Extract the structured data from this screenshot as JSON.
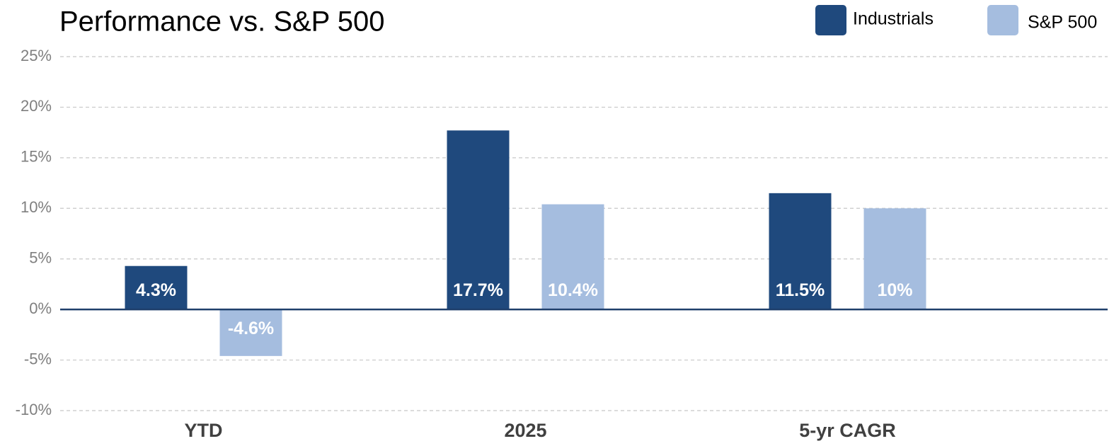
{
  "chart_data": {
    "type": "bar",
    "title": "Performance vs. S&P 500",
    "categories": [
      "YTD",
      "2025",
      "5-yr CAGR"
    ],
    "series": [
      {
        "name": "Industrials",
        "color": "#1f497d",
        "values": [
          4.3,
          17.7,
          11.5
        ],
        "value_labels": [
          "4.3%",
          "17.7%",
          "11.5%"
        ]
      },
      {
        "name": "S&P 500",
        "color": "#a5bddf",
        "values": [
          -4.6,
          10.4,
          10
        ],
        "value_labels": [
          "-4.6%",
          "10.4%",
          "10%"
        ]
      }
    ],
    "ylim": [
      -10,
      25
    ],
    "yticks": [
      {
        "value": -10,
        "label": "-10%"
      },
      {
        "value": -5,
        "label": "-5%"
      },
      {
        "value": 0,
        "label": "0%"
      },
      {
        "value": 5,
        "label": "5%"
      },
      {
        "value": 10,
        "label": "10%"
      },
      {
        "value": 15,
        "label": "15%"
      },
      {
        "value": 20,
        "label": "20%"
      },
      {
        "value": 25,
        "label": "25%"
      }
    ],
    "grid": true,
    "legend": "top-right"
  }
}
